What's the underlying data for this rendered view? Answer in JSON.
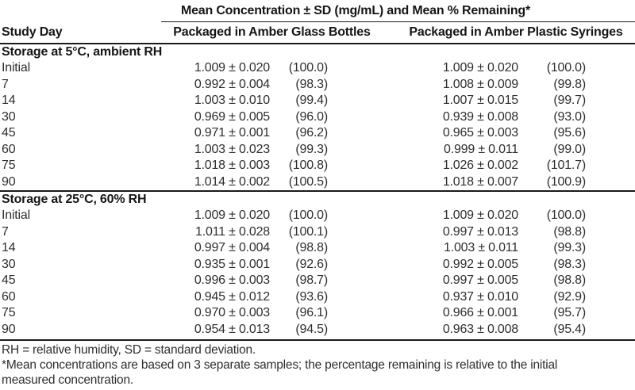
{
  "colors": {
    "background": "#ffffff",
    "text": "#2e2e2e",
    "heading_text": "#161616",
    "rule": "#1a1a1a"
  },
  "table": {
    "title": "Mean Concentration ± SD (mg/mL) and Mean % Remaining*",
    "row_header": "Study Day",
    "column_groups": [
      {
        "label": "Packaged in Amber Glass Bottles",
        "subcolumns": [
          "mean_concentration_sd",
          "mean_percent_remaining"
        ]
      },
      {
        "label": "Packaged in Amber Plastic Syringes",
        "subcolumns": [
          "mean_concentration_sd",
          "mean_percent_remaining"
        ]
      }
    ],
    "sections": [
      {
        "header": "Storage at 5°C, ambient RH",
        "rows": [
          {
            "day": "Initial",
            "glass_conc": "1.009 ± 0.020",
            "glass_pct": "(100.0)",
            "syringe_conc": "1.009 ± 0.020",
            "syringe_pct": "(100.0)"
          },
          {
            "day": "7",
            "glass_conc": "0.992 ± 0.004",
            "glass_pct": "(98.3)",
            "syringe_conc": "1.008 ± 0.009",
            "syringe_pct": "(99.8)"
          },
          {
            "day": "14",
            "glass_conc": "1.003 ± 0.010",
            "glass_pct": "(99.4)",
            "syringe_conc": "1.007 ± 0.015",
            "syringe_pct": "(99.7)"
          },
          {
            "day": "30",
            "glass_conc": "0.969 ± 0.005",
            "glass_pct": "(96.0)",
            "syringe_conc": "0.939 ± 0.008",
            "syringe_pct": "(93.0)"
          },
          {
            "day": "45",
            "glass_conc": "0.971 ± 0.001",
            "glass_pct": "(96.2)",
            "syringe_conc": "0.965 ± 0.003",
            "syringe_pct": "(95.6)"
          },
          {
            "day": "60",
            "glass_conc": "1.003 ± 0.023",
            "glass_pct": "(99.3)",
            "syringe_conc": "0.999 ± 0.011",
            "syringe_pct": "(99.0)"
          },
          {
            "day": "75",
            "glass_conc": "1.018 ± 0.003",
            "glass_pct": "(100.8)",
            "syringe_conc": "1.026 ± 0.002",
            "syringe_pct": "(101.7)"
          },
          {
            "day": "90",
            "glass_conc": "1.014 ± 0.002",
            "glass_pct": "(100.5)",
            "syringe_conc": "1.018 ± 0.007",
            "syringe_pct": "(100.9)"
          }
        ]
      },
      {
        "header": "Storage at 25°C, 60% RH",
        "rows": [
          {
            "day": "Initial",
            "glass_conc": "1.009 ± 0.020",
            "glass_pct": "(100.0)",
            "syringe_conc": "1.009 ± 0.020",
            "syringe_pct": "(100.0)"
          },
          {
            "day": "7",
            "glass_conc": "1.011 ± 0.028",
            "glass_pct": "(100.1)",
            "syringe_conc": "0.997 ± 0.013",
            "syringe_pct": "(98.8)"
          },
          {
            "day": "14",
            "glass_conc": "0.997 ± 0.004",
            "glass_pct": "(98.8)",
            "syringe_conc": "1.003 ± 0.011",
            "syringe_pct": "(99.3)"
          },
          {
            "day": "30",
            "glass_conc": "0.935 ± 0.001",
            "glass_pct": "(92.6)",
            "syringe_conc": "0.992 ± 0.005",
            "syringe_pct": "(98.3)"
          },
          {
            "day": "45",
            "glass_conc": "0.996 ± 0.003",
            "glass_pct": "(98.7)",
            "syringe_conc": "0.997 ± 0.005",
            "syringe_pct": "(98.8)"
          },
          {
            "day": "60",
            "glass_conc": "0.945 ± 0.012",
            "glass_pct": "(93.6)",
            "syringe_conc": "0.937 ± 0.010",
            "syringe_pct": "(92.9)"
          },
          {
            "day": "75",
            "glass_conc": "0.970 ± 0.003",
            "glass_pct": "(96.1)",
            "syringe_conc": "0.966 ± 0.001",
            "syringe_pct": "(95.7)"
          },
          {
            "day": "90",
            "glass_conc": "0.954 ± 0.013",
            "glass_pct": "(94.5)",
            "syringe_conc": "0.963 ± 0.008",
            "syringe_pct": "(95.4)"
          }
        ]
      }
    ],
    "footnote_lines": [
      "RH = relative humidity, SD = standard deviation.",
      "*Mean concentrations are based on 3 separate samples; the percentage remaining is relative to the initial",
      "measured concentration."
    ]
  }
}
